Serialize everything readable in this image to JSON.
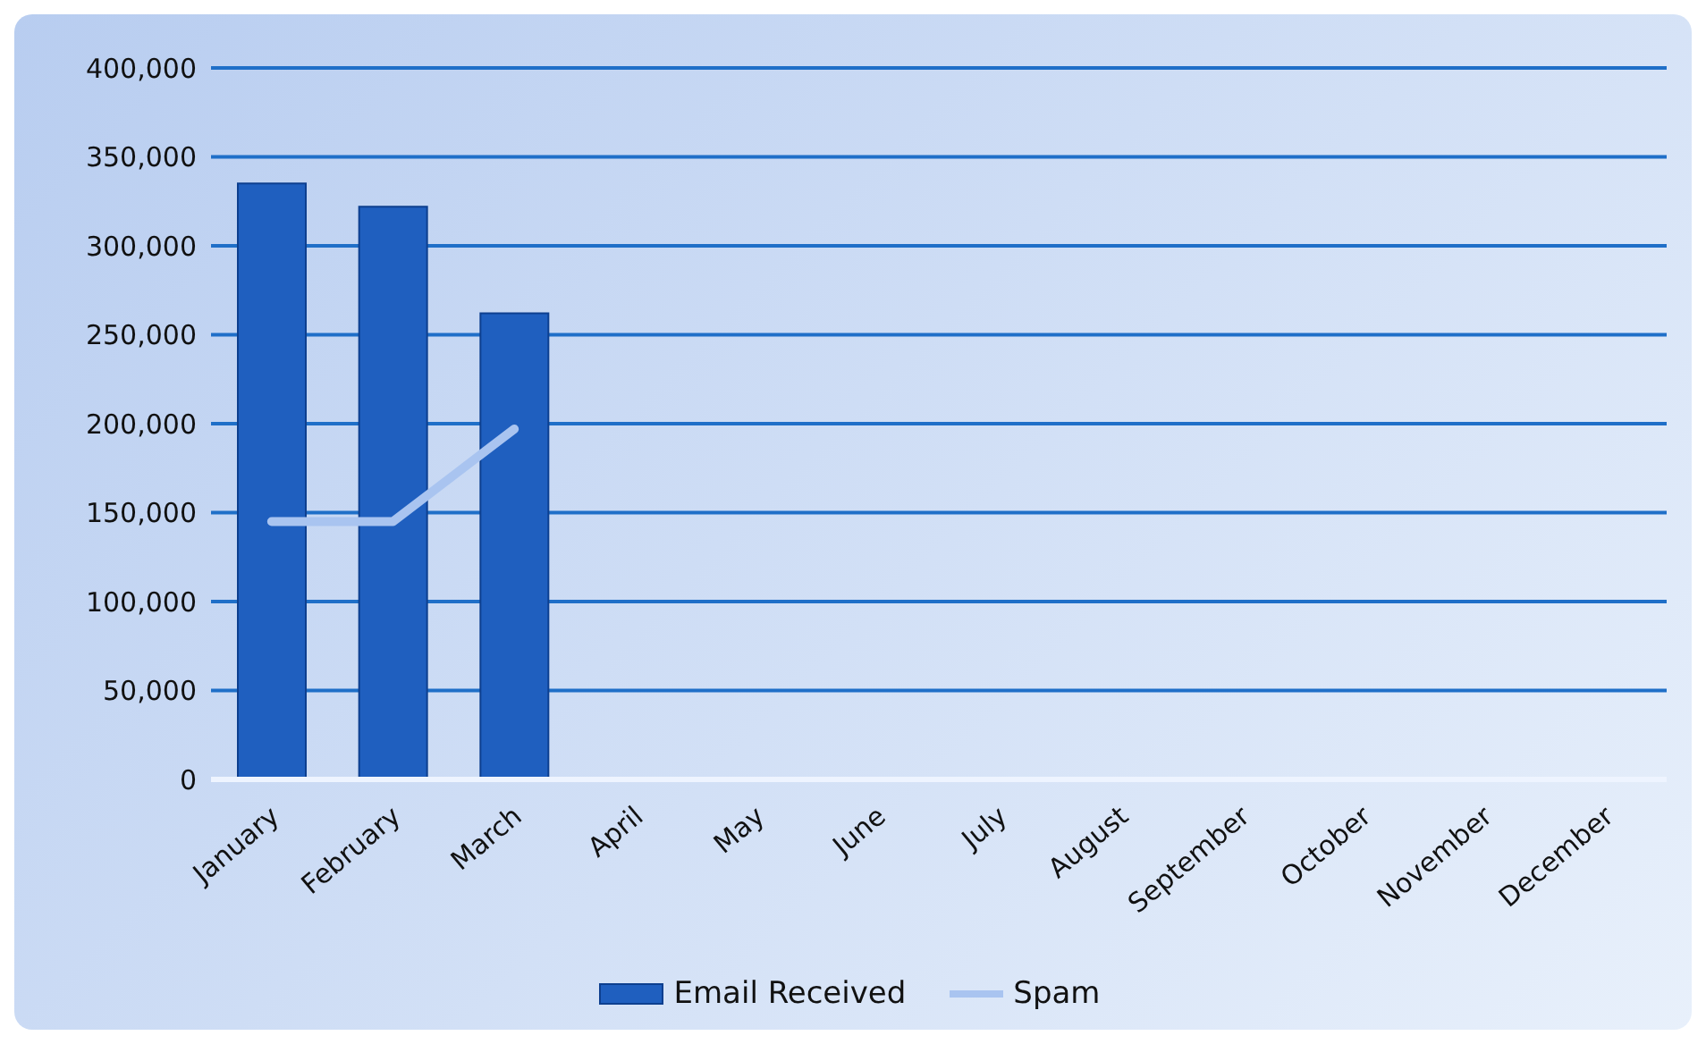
{
  "chart_data": {
    "type": "bar",
    "categories": [
      "January",
      "February",
      "March",
      "April",
      "May",
      "June",
      "July",
      "August",
      "September",
      "October",
      "November",
      "December"
    ],
    "series": [
      {
        "name": "Email Received",
        "color": "#1f5fbf",
        "values": [
          335000,
          322000,
          262000,
          null,
          null,
          null,
          null,
          null,
          null,
          null,
          null,
          null
        ]
      },
      {
        "name": "Spam",
        "type": "line",
        "color": "#a9c4f0",
        "values": [
          145000,
          145000,
          197000,
          null,
          null,
          null,
          null,
          null,
          null,
          null,
          null,
          null
        ]
      }
    ],
    "ylim": [
      0,
      400000
    ],
    "yticks": [
      {
        "value": 0,
        "label": "0"
      },
      {
        "value": 50000,
        "label": "50,000"
      },
      {
        "value": 100000,
        "label": "100,000"
      },
      {
        "value": 150000,
        "label": "150,000"
      },
      {
        "value": 200000,
        "label": "200,000"
      },
      {
        "value": 250000,
        "label": "250,000"
      },
      {
        "value": 300000,
        "label": "300,000"
      },
      {
        "value": 350000,
        "label": "350,000"
      },
      {
        "value": 400000,
        "label": "400,000"
      }
    ],
    "grid": "y",
    "legend": "bottom",
    "marker": "none"
  }
}
